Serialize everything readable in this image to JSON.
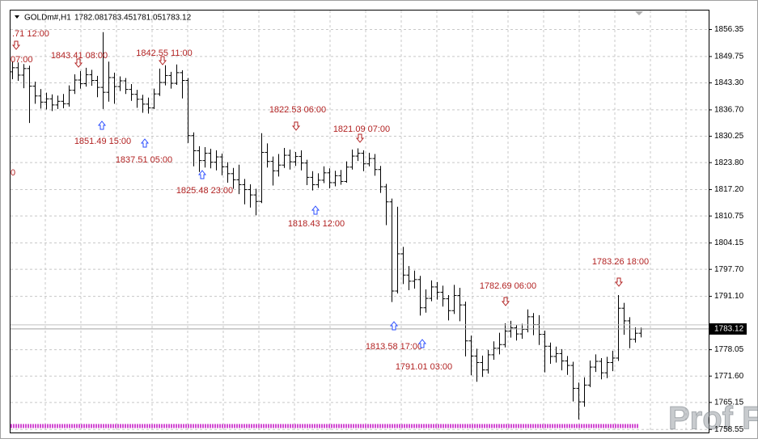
{
  "chart_data": {
    "type": "ohlc",
    "title": "GOLDm#,H1",
    "watermark": "Prof FX",
    "bar_color": "#000000",
    "grid": true,
    "ylim": [
      1758.0,
      1861.0
    ],
    "yticks": [
      1856.35,
      1849.75,
      {
        "value": 1843.3,
        "label": "1843.30"
      },
      {
        "value": 1836.7,
        "label": "1836.70"
      },
      1830.25,
      {
        "value": 1823.8,
        "label": "1823.80"
      },
      {
        "value": 1817.2,
        "label": "1817.20"
      },
      1810.75,
      1804.15,
      {
        "value": 1797.7,
        "label": "1797.70"
      },
      {
        "value": 1791.1,
        "label": "1791.10"
      },
      1778.05,
      {
        "value": 1771.6,
        "label": "1771.60"
      },
      1765.15,
      1758.55
    ],
    "open": [
      1846.0,
      1847.0,
      1845.2,
      1846.8,
      1842.5,
      1840.1,
      1838.6,
      1839.4,
      1837.9,
      1838.8,
      1838.2,
      1841.5,
      1844.0,
      1843.1,
      1845.3,
      1843.9,
      1842.2,
      1841.0,
      1844.6,
      1842.4,
      1843.8,
      1841.7,
      1840.5,
      1839.3,
      1838.1,
      1837.2,
      1840.6,
      1843.4,
      1845.1,
      1843.2,
      1845.8,
      1843.9,
      1830.4,
      1826.7,
      1824.3,
      1826.1,
      1823.9,
      1825.2,
      1822.8,
      1821.1,
      1819.6,
      1818.4,
      1817.2,
      1815.9,
      1814.3,
      1826.3,
      1824.1,
      1821.8,
      1823.2,
      1825.6,
      1824.0,
      1825.3,
      1823.7,
      1820.2,
      1818.4,
      1819.5,
      1821.3,
      1818.9,
      1820.6,
      1819.2,
      1822.7,
      1825.4,
      1826.1,
      1823.5,
      1824.8,
      1822.1,
      1817.9,
      1814.2,
      1792.4,
      1801.5,
      1796.3,
      1794.8,
      1795.2,
      1788.3,
      1790.6,
      1793.4,
      1792.1,
      1790.5,
      1787.6,
      1791.3,
      1789.0,
      1780.2,
      1776.5,
      1774.9,
      1773.1,
      1776.8,
      1778.4,
      1779.3,
      1782.6,
      1783.4,
      1781.9,
      1783.0,
      1786.1,
      1784.2,
      1781.8,
      1778.9,
      1776.4,
      1777.1,
      1775.3,
      1774.2,
      1768.6,
      1765.3,
      1769.4,
      1773.8,
      1775.2,
      1772.4,
      1774.9,
      1776.0,
      1788.2,
      1785.1,
      1780.6,
      1782.08
    ],
    "high": [
      1848.6,
      1848.3,
      1847.9,
      1847.5,
      1843.6,
      1841.8,
      1840.9,
      1840.5,
      1840.2,
      1840.6,
      1842.7,
      1845.4,
      1846.2,
      1847.0,
      1846.5,
      1845.0,
      1855.7,
      1848.5,
      1845.8,
      1844.9,
      1844.5,
      1843.0,
      1841.6,
      1840.4,
      1839.7,
      1841.9,
      1846.8,
      1847.6,
      1846.0,
      1847.8,
      1846.4,
      1844.5,
      1831.2,
      1827.8,
      1827.6,
      1827.2,
      1826.8,
      1826.0,
      1823.9,
      1822.5,
      1823.3,
      1819.8,
      1818.5,
      1817.4,
      1831.0,
      1828.5,
      1825.3,
      1825.9,
      1827.4,
      1827.0,
      1826.4,
      1826.8,
      1824.5,
      1821.7,
      1821.2,
      1822.9,
      1822.4,
      1821.8,
      1822.0,
      1824.1,
      1827.0,
      1827.3,
      1826.8,
      1826.2,
      1825.9,
      1823.0,
      1818.6,
      1815.0,
      1813.0,
      1803.2,
      1798.5,
      1797.4,
      1796.1,
      1792.8,
      1795.0,
      1794.6,
      1793.7,
      1791.4,
      1793.9,
      1793.2,
      1789.8,
      1781.5,
      1778.3,
      1776.6,
      1778.0,
      1780.1,
      1782.2,
      1784.5,
      1785.1,
      1784.2,
      1784.4,
      1787.9,
      1787.0,
      1786.5,
      1782.7,
      1779.8,
      1778.8,
      1778.2,
      1776.5,
      1775.1,
      1770.0,
      1771.3,
      1775.4,
      1776.9,
      1776.0,
      1776.3,
      1777.8,
      1791.4,
      1789.5,
      1786.0,
      1783.5,
      1783.45
    ],
    "low": [
      1844.2,
      1843.8,
      1842.0,
      1833.5,
      1838.2,
      1837.0,
      1836.8,
      1836.4,
      1836.9,
      1837.1,
      1837.5,
      1840.6,
      1841.9,
      1842.4,
      1842.6,
      1839.8,
      1836.9,
      1838.7,
      1838.2,
      1841.3,
      1840.6,
      1838.9,
      1837.2,
      1836.0,
      1835.8,
      1836.9,
      1840.1,
      1842.7,
      1841.9,
      1842.8,
      1839.5,
      1828.6,
      1822.9,
      1821.5,
      1822.6,
      1822.4,
      1821.9,
      1820.7,
      1818.9,
      1817.4,
      1816.1,
      1813.6,
      1812.8,
      1810.9,
      1813.9,
      1822.6,
      1818.2,
      1820.4,
      1822.5,
      1822.1,
      1823.0,
      1821.9,
      1818.3,
      1817.0,
      1817.6,
      1818.8,
      1817.5,
      1818.0,
      1818.4,
      1818.9,
      1822.1,
      1824.2,
      1821.7,
      1822.9,
      1820.6,
      1816.4,
      1808.5,
      1789.7,
      1791.8,
      1794.1,
      1792.6,
      1793.0,
      1786.4,
      1787.1,
      1789.9,
      1790.3,
      1788.6,
      1785.2,
      1786.8,
      1785.0,
      1776.4,
      1771.8,
      1770.2,
      1771.4,
      1772.2,
      1775.6,
      1776.9,
      1778.6,
      1781.0,
      1780.3,
      1780.7,
      1782.3,
      1781.6,
      1779.2,
      1772.5,
      1774.6,
      1774.9,
      1773.0,
      1771.9,
      1765.4,
      1761.0,
      1764.1,
      1768.9,
      1772.6,
      1770.8,
      1771.1,
      1772.8,
      1775.3,
      1781.7,
      1778.4,
      1779.8,
      1781.05
    ],
    "close": [
      1847.0,
      1845.2,
      1846.8,
      1842.5,
      1840.1,
      1838.6,
      1839.4,
      1837.9,
      1838.8,
      1838.2,
      1841.5,
      1844.0,
      1843.1,
      1845.3,
      1843.9,
      1842.2,
      1841.0,
      1844.6,
      1842.4,
      1843.8,
      1841.7,
      1840.5,
      1839.3,
      1838.1,
      1837.2,
      1840.6,
      1843.4,
      1845.1,
      1843.2,
      1845.8,
      1843.9,
      1830.4,
      1826.7,
      1824.3,
      1826.1,
      1823.9,
      1825.2,
      1822.8,
      1821.1,
      1819.6,
      1818.4,
      1817.2,
      1815.9,
      1814.3,
      1826.3,
      1824.1,
      1821.8,
      1823.2,
      1825.6,
      1824.0,
      1825.3,
      1823.7,
      1820.2,
      1818.4,
      1819.5,
      1821.3,
      1818.9,
      1820.6,
      1819.2,
      1822.7,
      1825.4,
      1826.1,
      1823.5,
      1824.8,
      1822.1,
      1817.9,
      1814.2,
      1792.4,
      1801.5,
      1796.3,
      1794.8,
      1795.2,
      1788.3,
      1790.6,
      1793.4,
      1792.1,
      1790.5,
      1787.6,
      1791.3,
      1789.0,
      1780.2,
      1776.5,
      1774.9,
      1773.1,
      1776.8,
      1778.4,
      1779.3,
      1782.6,
      1783.4,
      1781.9,
      1783.0,
      1786.1,
      1784.2,
      1781.8,
      1778.9,
      1776.4,
      1777.1,
      1775.3,
      1774.2,
      1768.6,
      1765.3,
      1769.4,
      1773.8,
      1775.2,
      1772.4,
      1774.9,
      1776.0,
      1788.2,
      1785.1,
      1780.6,
      1782.08,
      1783.12
    ],
    "annotation_color": "#b22222",
    "up_arrow_color": "#2a4dff",
    "annotations": [
      ".71 12:00",
      "07:00",
      "1843.41 08:00",
      "1842.55 11:00",
      "1851.49 15:00",
      "1837.51 05:00",
      "0",
      "1825.48 23:00",
      "1822.53 06:00",
      "1821.09 07:00",
      "1818.43 12:00",
      "1813.58 17:00",
      "1791.01 03:00",
      "1782.69 06:00",
      "1783.26 18:00"
    ]
  }
}
